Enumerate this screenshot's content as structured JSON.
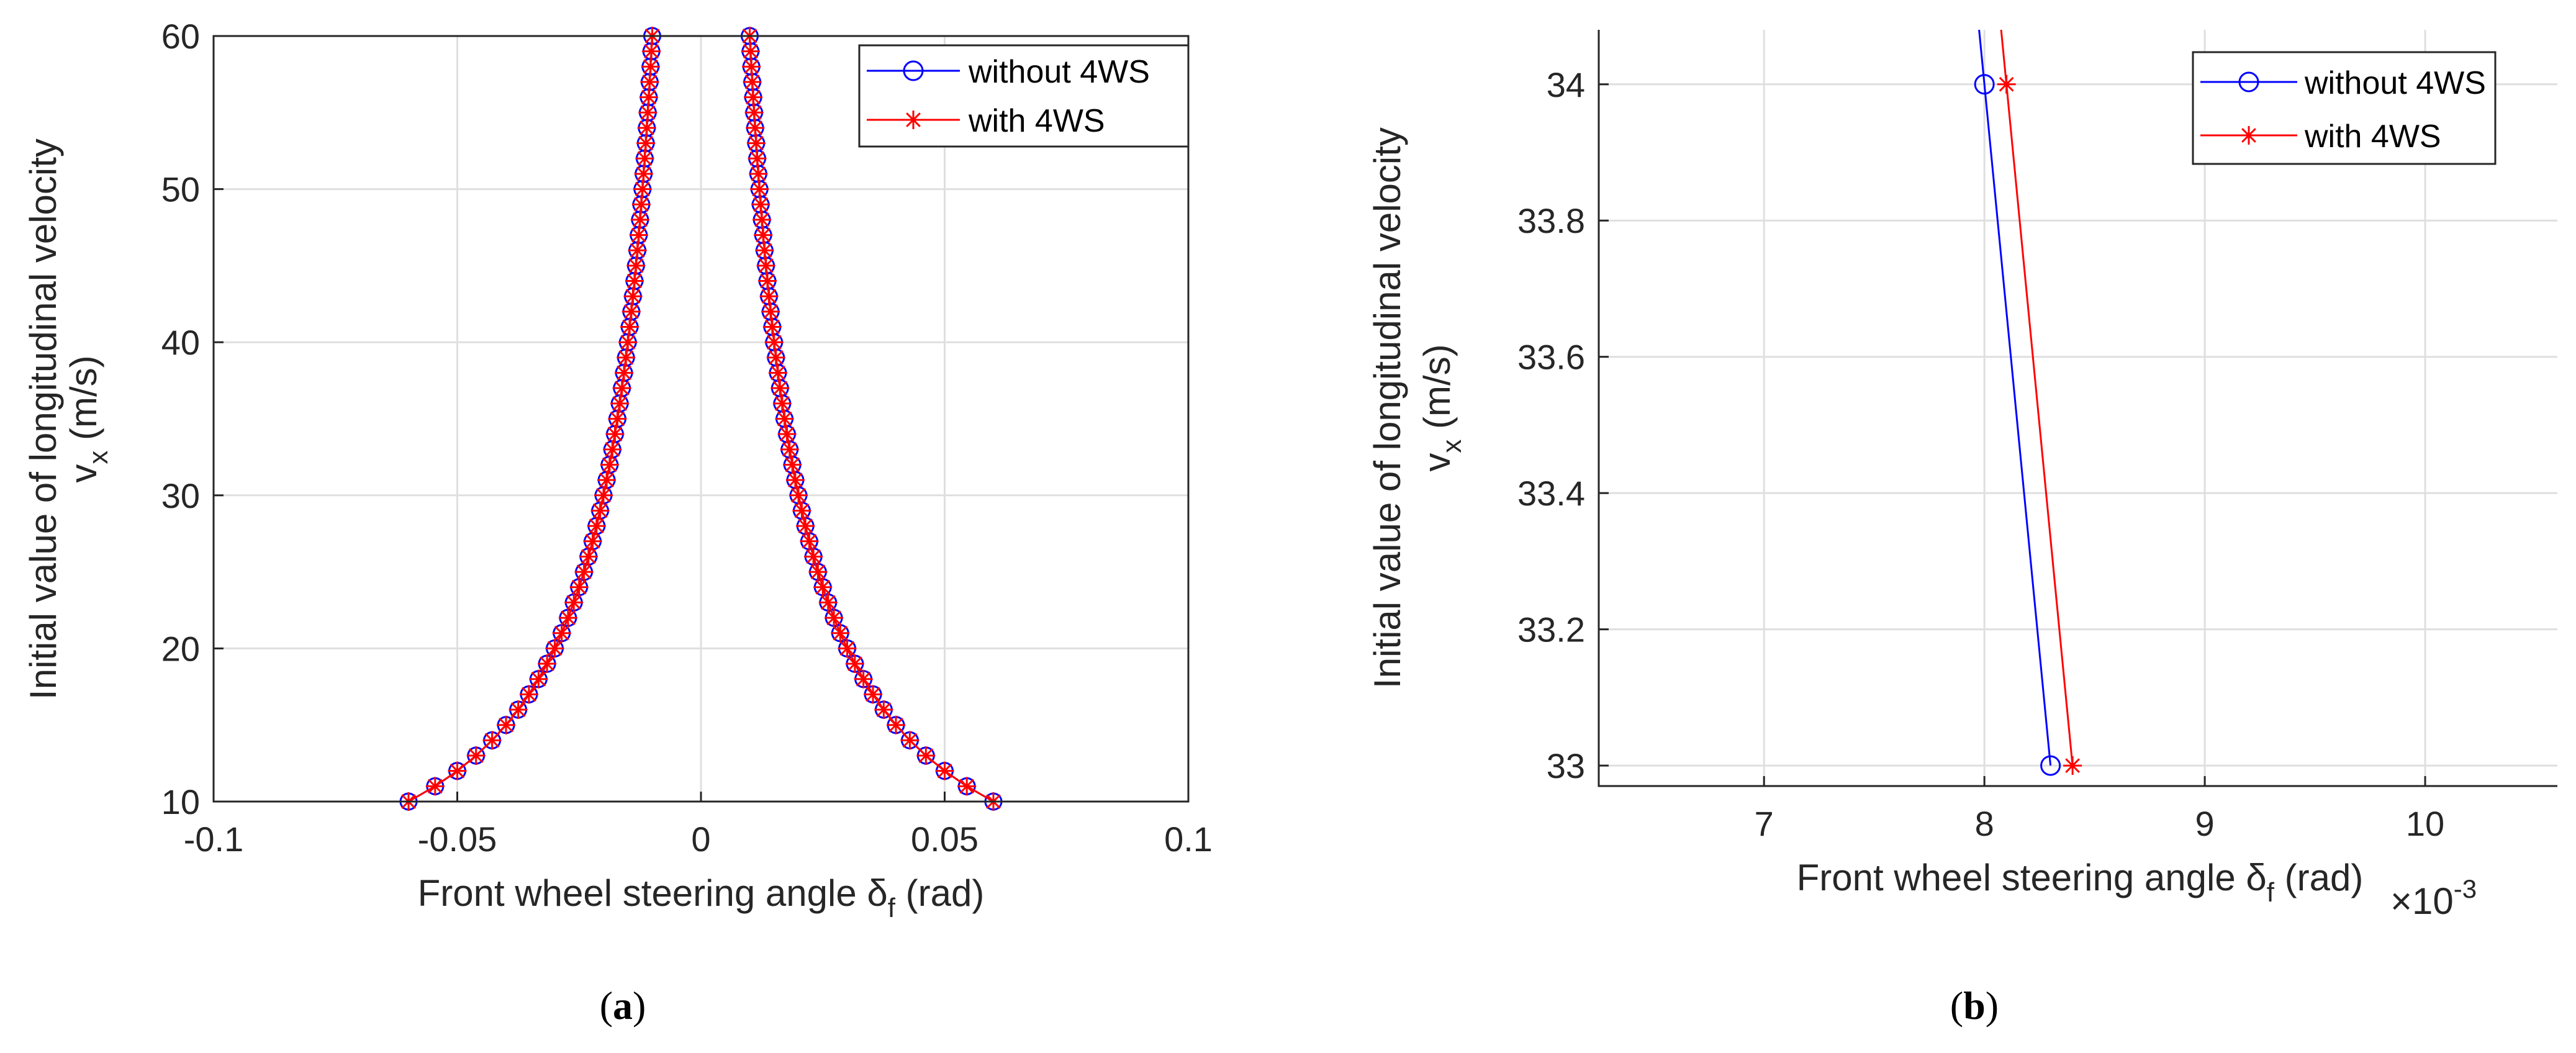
{
  "chart_data": [
    {
      "type": "line",
      "panel_label": "a",
      "xlabel": "Front wheel steering angle  δf (rad)",
      "ylabel_line1": "Initial value of longitudinal velocity",
      "ylabel_line2": "vx (m/s)",
      "xlim": [
        -0.1,
        0.1
      ],
      "ylim": [
        10,
        60
      ],
      "xticks": [
        -0.1,
        -0.05,
        0,
        0.05,
        0.1
      ],
      "xtick_labels": [
        "-0.1",
        "-0.05",
        "0",
        "0.05",
        "0.1"
      ],
      "yticks": [
        10,
        20,
        30,
        40,
        50,
        60
      ],
      "ytick_labels": [
        "10",
        "20",
        "30",
        "40",
        "50",
        "60"
      ],
      "grid": true,
      "legend_position": "top-right",
      "series": [
        {
          "name": "without 4WS",
          "color": "#0000ff",
          "marker": "circle",
          "formula": "delta = ±0.6 / vx",
          "vx_range": [
            10,
            60
          ],
          "vx_step": 1
        },
        {
          "name": "with 4WS",
          "color": "#ff0000",
          "marker": "star",
          "formula": "delta = ±0.6 / vx",
          "vx_range": [
            10,
            60
          ],
          "vx_step": 1
        }
      ]
    },
    {
      "type": "line",
      "panel_label": "b",
      "xlabel": "Front wheel steering angle  δf (rad)",
      "ylabel_line1": "Initial value of longitudinal velocity",
      "ylabel_line2": "vx (m/s)",
      "x_multiplier": "×10-3",
      "xlim": [
        6.25,
        10.6
      ],
      "ylim": [
        32.97,
        34.08
      ],
      "xticks": [
        7,
        8,
        9,
        10
      ],
      "xtick_labels": [
        "7",
        "8",
        "9",
        "10"
      ],
      "yticks": [
        33,
        33.2,
        33.4,
        33.6,
        33.8,
        34
      ],
      "ytick_labels": [
        "33",
        "33.2",
        "33.4",
        "33.6",
        "33.8",
        "34"
      ],
      "grid": true,
      "legend_position": "top-right",
      "series": [
        {
          "name": "without 4WS",
          "color": "#0000ff",
          "marker": "circle",
          "points": [
            [
              8.3,
              33
            ],
            [
              8.0,
              34
            ]
          ],
          "extend_to_y": 34.1
        },
        {
          "name": "with 4WS",
          "color": "#ff0000",
          "marker": "star",
          "points": [
            [
              8.4,
              33
            ],
            [
              8.1,
              34
            ]
          ],
          "extend_to_y": 34.1
        }
      ]
    }
  ],
  "legend": {
    "item1": "without 4WS",
    "item2": "with 4WS"
  },
  "captions": {
    "a_open": "(",
    "a_letter": "a",
    "a_close": ")",
    "b_open": "(",
    "b_letter": "b",
    "b_close": ")"
  }
}
